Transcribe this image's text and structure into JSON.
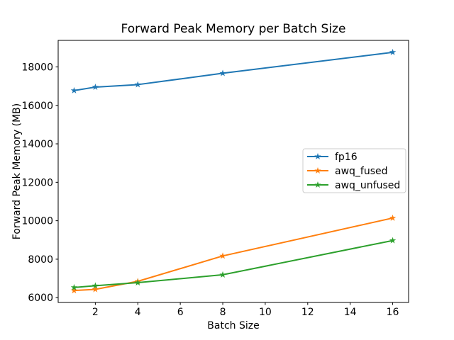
{
  "figure": {
    "title": "Forward Peak Memory per Batch Size",
    "xlabel": "Batch Size",
    "ylabel": "Forward Peak Memory (MB)"
  },
  "chart_data": {
    "type": "line",
    "title": "Forward Peak Memory per Batch Size",
    "xlabel": "Batch Size",
    "ylabel": "Forward Peak Memory (MB)",
    "x": [
      1,
      2,
      4,
      8,
      16
    ],
    "series": [
      {
        "name": "fp16",
        "color": "#1f77b4",
        "marker": "star",
        "values": [
          16770,
          16950,
          17080,
          17670,
          18760
        ]
      },
      {
        "name": "awq_fused",
        "color": "#ff7f0e",
        "marker": "star",
        "values": [
          6370,
          6430,
          6850,
          8170,
          10140
        ]
      },
      {
        "name": "awq_unfused",
        "color": "#2ca02c",
        "marker": "star",
        "values": [
          6530,
          6620,
          6780,
          7190,
          8970
        ]
      }
    ],
    "xlim": [
      0.25,
      16.75
    ],
    "ylim": [
      5750,
      19380
    ],
    "xticks": [
      2,
      4,
      6,
      8,
      10,
      12,
      14,
      16
    ],
    "yticks": [
      6000,
      8000,
      10000,
      12000,
      14000,
      16000,
      18000
    ],
    "grid": false,
    "legend": {
      "position": "center right",
      "entries": [
        "fp16",
        "awq_fused",
        "awq_unfused"
      ]
    }
  }
}
